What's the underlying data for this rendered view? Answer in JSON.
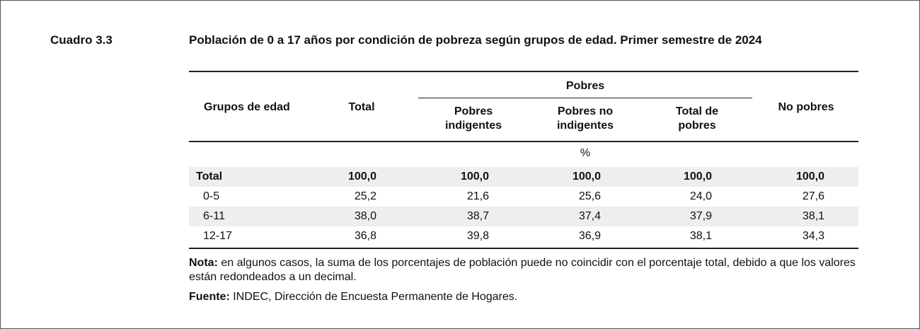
{
  "header": {
    "label": "Cuadro 3.3",
    "title": "Población de 0 a 17 años por condición de pobreza según grupos de edad. Primer semestre de 2024"
  },
  "table": {
    "columns": {
      "age_group": "Grupos de edad",
      "total": "Total",
      "poor_group": "Pobres",
      "poor_indigent": "Pobres indigentes",
      "poor_non_indigent": "Pobres no indigentes",
      "total_poor": "Total de pobres",
      "non_poor": "No pobres"
    },
    "unit": "%",
    "rows": [
      [
        "Total",
        "100,0",
        "100,0",
        "100,0",
        "100,0",
        "100,0"
      ],
      [
        "0-5",
        "25,2",
        "21,6",
        "25,6",
        "24,0",
        "27,6"
      ],
      [
        "6-11",
        "38,0",
        "38,7",
        "37,4",
        "37,9",
        "38,1"
      ],
      [
        "12-17",
        "36,8",
        "39,8",
        "36,9",
        "38,1",
        "34,3"
      ]
    ]
  },
  "notes": {
    "label": "Nota:",
    "text": "en algunos casos, la suma de los porcentajes de población puede no coincidir con el porcentaje total, debido a que los valores están redondeados a un decimal."
  },
  "source": {
    "label": "Fuente:",
    "text": "INDEC, Dirección de Encuesta Permanente de Hogares."
  }
}
